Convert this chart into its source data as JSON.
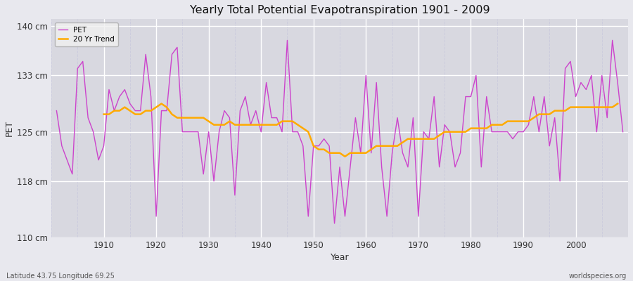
{
  "title": "Yearly Total Potential Evapotranspiration 1901 - 2009",
  "xlabel": "Year",
  "ylabel": "PET",
  "bottom_left_label": "Latitude 43.75 Longitude 69.25",
  "bottom_right_label": "worldspecies.org",
  "pet_color": "#cc44cc",
  "trend_color": "#ffaa00",
  "bg_color": "#e8e8ee",
  "plot_bg_color": "#d8d8e0",
  "grid_color_major": "#ffffff",
  "grid_color_minor": "#ccccdd",
  "ylim": [
    110,
    141
  ],
  "yticks": [
    110,
    118,
    125,
    133,
    140
  ],
  "ytick_labels": [
    "110 cm",
    "118 cm",
    "125 cm",
    "133 cm",
    "140 cm"
  ],
  "xlim": [
    1900,
    2010
  ],
  "xticks": [
    1910,
    1920,
    1930,
    1940,
    1950,
    1960,
    1970,
    1980,
    1990,
    2000
  ],
  "years": [
    1901,
    1902,
    1903,
    1904,
    1905,
    1906,
    1907,
    1908,
    1909,
    1910,
    1911,
    1912,
    1913,
    1914,
    1915,
    1916,
    1917,
    1918,
    1919,
    1920,
    1921,
    1922,
    1923,
    1924,
    1925,
    1926,
    1927,
    1928,
    1929,
    1930,
    1931,
    1932,
    1933,
    1934,
    1935,
    1936,
    1937,
    1938,
    1939,
    1940,
    1941,
    1942,
    1943,
    1944,
    1945,
    1946,
    1947,
    1948,
    1949,
    1950,
    1951,
    1952,
    1953,
    1954,
    1955,
    1956,
    1957,
    1958,
    1959,
    1960,
    1961,
    1962,
    1963,
    1964,
    1965,
    1966,
    1967,
    1968,
    1969,
    1970,
    1971,
    1972,
    1973,
    1974,
    1975,
    1976,
    1977,
    1978,
    1979,
    1980,
    1981,
    1982,
    1983,
    1984,
    1985,
    1986,
    1987,
    1988,
    1989,
    1990,
    1991,
    1992,
    1993,
    1994,
    1995,
    1996,
    1997,
    1998,
    1999,
    2000,
    2001,
    2002,
    2003,
    2004,
    2005,
    2006,
    2007,
    2008,
    2009
  ],
  "pet_values": [
    128,
    123,
    121,
    119,
    134,
    135,
    127,
    125,
    121,
    123,
    131,
    128,
    130,
    131,
    129,
    128,
    128,
    136,
    130,
    113,
    128,
    128,
    136,
    137,
    125,
    125,
    125,
    125,
    119,
    125,
    118,
    125,
    128,
    127,
    116,
    128,
    130,
    126,
    128,
    125,
    132,
    127,
    127,
    125,
    138,
    125,
    125,
    123,
    113,
    123,
    123,
    124,
    123,
    112,
    120,
    113,
    120,
    127,
    122,
    133,
    122,
    132,
    120,
    113,
    122,
    127,
    122,
    120,
    127,
    113,
    125,
    124,
    130,
    120,
    126,
    125,
    120,
    122,
    130,
    130,
    133,
    120,
    130,
    125,
    125,
    125,
    125,
    124,
    125,
    125,
    126,
    130,
    125,
    130,
    123,
    127,
    118,
    134,
    135,
    130,
    132,
    131,
    133,
    125,
    133,
    127,
    138,
    132,
    125
  ],
  "trend_years": [
    1910,
    1911,
    1912,
    1913,
    1914,
    1915,
    1916,
    1917,
    1918,
    1919,
    1920,
    1921,
    1922,
    1923,
    1924,
    1925,
    1926,
    1927,
    1928,
    1929,
    1930,
    1931,
    1932,
    1933,
    1934,
    1935,
    1936,
    1937,
    1938,
    1939,
    1940,
    1941,
    1942,
    1943,
    1944,
    1945,
    1946,
    1947,
    1948,
    1949,
    1950,
    1951,
    1952,
    1953,
    1954,
    1955,
    1956,
    1957,
    1958,
    1959,
    1960,
    1961,
    1962,
    1963,
    1964,
    1965,
    1966,
    1967,
    1968,
    1969,
    1970,
    1971,
    1972,
    1973,
    1974,
    1975,
    1976,
    1977,
    1978,
    1979,
    1980,
    1981,
    1982,
    1983,
    1984,
    1985,
    1986,
    1987,
    1988,
    1989,
    1990,
    1991,
    1992,
    1993,
    1994,
    1995,
    1996,
    1997,
    1998,
    1999,
    2000,
    2001,
    2002,
    2003,
    2004,
    2005,
    2006,
    2007,
    2008
  ],
  "trend_values": [
    127.5,
    127.5,
    128.0,
    128.0,
    128.5,
    128.0,
    127.5,
    127.5,
    128.0,
    128.0,
    128.5,
    129.0,
    128.5,
    127.5,
    127.0,
    127.0,
    127.0,
    127.0,
    127.0,
    127.0,
    126.5,
    126.0,
    126.0,
    126.0,
    126.5,
    126.0,
    126.0,
    126.0,
    126.0,
    126.0,
    126.0,
    126.0,
    126.0,
    126.0,
    126.5,
    126.5,
    126.5,
    126.0,
    125.5,
    125.0,
    123.0,
    122.5,
    122.5,
    122.0,
    122.0,
    122.0,
    121.5,
    122.0,
    122.0,
    122.0,
    122.0,
    122.5,
    123.0,
    123.0,
    123.0,
    123.0,
    123.0,
    123.5,
    124.0,
    124.0,
    124.0,
    124.0,
    124.0,
    124.0,
    124.5,
    125.0,
    125.0,
    125.0,
    125.0,
    125.0,
    125.5,
    125.5,
    125.5,
    125.5,
    126.0,
    126.0,
    126.0,
    126.5,
    126.5,
    126.5,
    126.5,
    126.5,
    127.0,
    127.5,
    127.5,
    127.5,
    128.0,
    128.0,
    128.0,
    128.5,
    128.5,
    128.5,
    128.5,
    128.5,
    128.5,
    128.5,
    128.5,
    128.5,
    129.0
  ]
}
